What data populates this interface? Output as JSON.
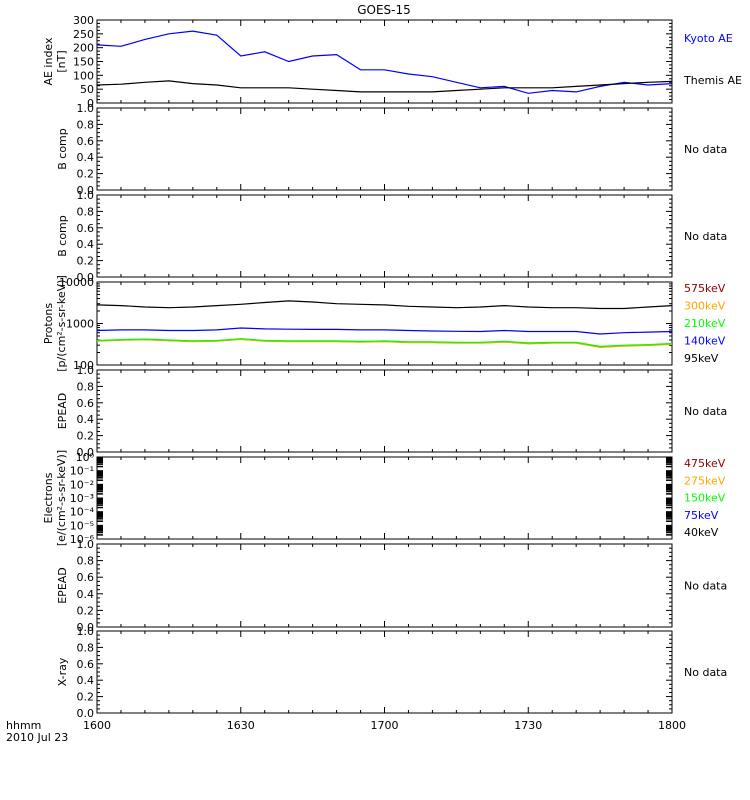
{
  "title": "GOES-15",
  "x_axis": {
    "ticks": [
      "1600",
      "1630",
      "1700",
      "1730",
      "1800"
    ],
    "label_top": "hhmm",
    "label_bottom": "2010 Jul 23"
  },
  "colors": {
    "black": "#000000",
    "blue": "#0000ff",
    "green": "#00ff00",
    "orange": "#ffa500",
    "darkred": "#8b0000",
    "nodata": "#000000"
  },
  "chart_data": [
    {
      "id": "ae",
      "type": "line",
      "ylabel": [
        "AE index",
        "[nT]"
      ],
      "yscale": "linear",
      "ylim": [
        0,
        300
      ],
      "yticks": [
        0,
        50,
        100,
        150,
        200,
        250,
        300
      ],
      "ytick_labels": [
        "0",
        "50",
        "100",
        "150",
        "200",
        "250",
        "300"
      ],
      "x": [
        1600,
        1605,
        1610,
        1615,
        1620,
        1625,
        1630,
        1635,
        1640,
        1645,
        1650,
        1655,
        1700,
        1705,
        1710,
        1715,
        1720,
        1725,
        1730,
        1735,
        1740,
        1745,
        1750,
        1755,
        1800
      ],
      "series": [
        {
          "name": "Kyoto AE",
          "color": "blue",
          "values": [
            210,
            205,
            230,
            250,
            260,
            245,
            170,
            185,
            150,
            170,
            175,
            120,
            120,
            105,
            95,
            75,
            55,
            60,
            35,
            45,
            40,
            60,
            75,
            65,
            70
          ]
        },
        {
          "name": "Themis AE",
          "color": "black",
          "values": [
            65,
            68,
            75,
            80,
            70,
            65,
            55,
            55,
            55,
            50,
            45,
            40,
            40,
            40,
            40,
            45,
            50,
            55,
            55,
            55,
            60,
            65,
            70,
            75,
            78
          ]
        }
      ],
      "legend_side": "right"
    },
    {
      "id": "bcomp1",
      "type": "line",
      "ylabel": [
        "B comp"
      ],
      "yscale": "linear",
      "ylim": [
        0,
        1
      ],
      "yticks": [
        0,
        0.2,
        0.4,
        0.6,
        0.8,
        1.0
      ],
      "ytick_labels": [
        "0.0",
        "0.2",
        "0.4",
        "0.6",
        "0.8",
        "1.0"
      ],
      "series": [],
      "note": "No data"
    },
    {
      "id": "bcomp2",
      "type": "line",
      "ylabel": [
        "B comp"
      ],
      "yscale": "linear",
      "ylim": [
        0,
        1
      ],
      "yticks": [
        0,
        0.2,
        0.4,
        0.6,
        0.8,
        1.0
      ],
      "ytick_labels": [
        "0.0",
        "0.2",
        "0.4",
        "0.6",
        "0.8",
        "1.0"
      ],
      "series": [],
      "note": "No data"
    },
    {
      "id": "protons",
      "type": "line",
      "ylabel": [
        "Protons",
        "[p/(cm²-s-sr-keV)]"
      ],
      "yscale": "log",
      "ylim": [
        100,
        10000
      ],
      "yticks": [
        100,
        1000,
        10000
      ],
      "ytick_labels": [
        "100",
        "1000",
        "10000"
      ],
      "x": [
        1600,
        1605,
        1610,
        1615,
        1620,
        1625,
        1630,
        1635,
        1640,
        1645,
        1650,
        1655,
        1700,
        1705,
        1710,
        1715,
        1720,
        1725,
        1730,
        1735,
        1740,
        1745,
        1750,
        1755,
        1800
      ],
      "series": [
        {
          "name": "575keV",
          "color": "darkred",
          "values": [
            380,
            400,
            410,
            390,
            370,
            380,
            420,
            380,
            370,
            370,
            370,
            360,
            370,
            350,
            350,
            340,
            340,
            360,
            330,
            340,
            340,
            270,
            290,
            300,
            320
          ]
        },
        {
          "name": "300keV",
          "color": "orange",
          "values": [
            375,
            395,
            405,
            385,
            365,
            375,
            415,
            375,
            365,
            365,
            365,
            355,
            365,
            345,
            345,
            335,
            335,
            355,
            325,
            335,
            335,
            265,
            285,
            295,
            315
          ]
        },
        {
          "name": "210keV",
          "color": "green",
          "values": [
            390,
            410,
            420,
            400,
            380,
            390,
            430,
            390,
            380,
            380,
            380,
            370,
            380,
            360,
            360,
            350,
            350,
            370,
            340,
            350,
            350,
            280,
            300,
            310,
            330
          ]
        },
        {
          "name": "140keV",
          "color": "blue",
          "values": [
            680,
            700,
            700,
            680,
            680,
            700,
            780,
            740,
            730,
            720,
            720,
            700,
            700,
            680,
            660,
            650,
            640,
            680,
            640,
            640,
            640,
            560,
            600,
            620,
            640
          ]
        },
        {
          "name": "95keV",
          "color": "black",
          "values": [
            2800,
            2700,
            2500,
            2400,
            2500,
            2700,
            2900,
            3200,
            3500,
            3300,
            3000,
            2900,
            2800,
            2600,
            2500,
            2400,
            2500,
            2700,
            2500,
            2400,
            2400,
            2300,
            2300,
            2500,
            2700
          ]
        }
      ],
      "legend_side": "right"
    },
    {
      "id": "epead1",
      "type": "line",
      "ylabel": [
        "EPEAD"
      ],
      "yscale": "linear",
      "ylim": [
        0,
        1
      ],
      "yticks": [
        0,
        0.2,
        0.4,
        0.6,
        0.8,
        1.0
      ],
      "ytick_labels": [
        "0.0",
        "0.2",
        "0.4",
        "0.6",
        "0.8",
        "1.0"
      ],
      "series": [],
      "note": "No data"
    },
    {
      "id": "electrons",
      "type": "line",
      "ylabel": [
        "Electrons",
        "[e/(cm²-s-sr-keV)]"
      ],
      "yscale": "log",
      "ylim": [
        1e-06,
        1
      ],
      "yticks": [
        1e-06,
        1e-05,
        0.0001,
        0.001,
        0.01,
        0.1,
        1
      ],
      "ytick_labels": [
        "10⁻⁶",
        "10⁻⁵",
        "10⁻⁴",
        "10⁻³",
        "10⁻²",
        "10⁻¹",
        "10⁰"
      ],
      "series": [
        {
          "name": "475keV",
          "color": "darkred",
          "values": []
        },
        {
          "name": "275keV",
          "color": "orange",
          "values": []
        },
        {
          "name": "150keV",
          "color": "green",
          "values": []
        },
        {
          "name": "75keV",
          "color": "blue",
          "values": []
        },
        {
          "name": "40keV",
          "color": "black",
          "values": []
        }
      ],
      "legend_side": "right"
    },
    {
      "id": "epead2",
      "type": "line",
      "ylabel": [
        "EPEAD"
      ],
      "yscale": "linear",
      "ylim": [
        0,
        1
      ],
      "yticks": [
        0,
        0.2,
        0.4,
        0.6,
        0.8,
        1.0
      ],
      "ytick_labels": [
        "0.0",
        "0.2",
        "0.4",
        "0.6",
        "0.8",
        "1.0"
      ],
      "series": [],
      "note": "No data"
    },
    {
      "id": "xray",
      "type": "line",
      "ylabel": [
        "X-ray"
      ],
      "yscale": "linear",
      "ylim": [
        0,
        1
      ],
      "yticks": [
        0,
        0.2,
        0.4,
        0.6,
        0.8,
        1.0
      ],
      "ytick_labels": [
        "0.0",
        "0.2",
        "0.4",
        "0.6",
        "0.8",
        "1.0"
      ],
      "series": [],
      "note": "No data"
    }
  ]
}
